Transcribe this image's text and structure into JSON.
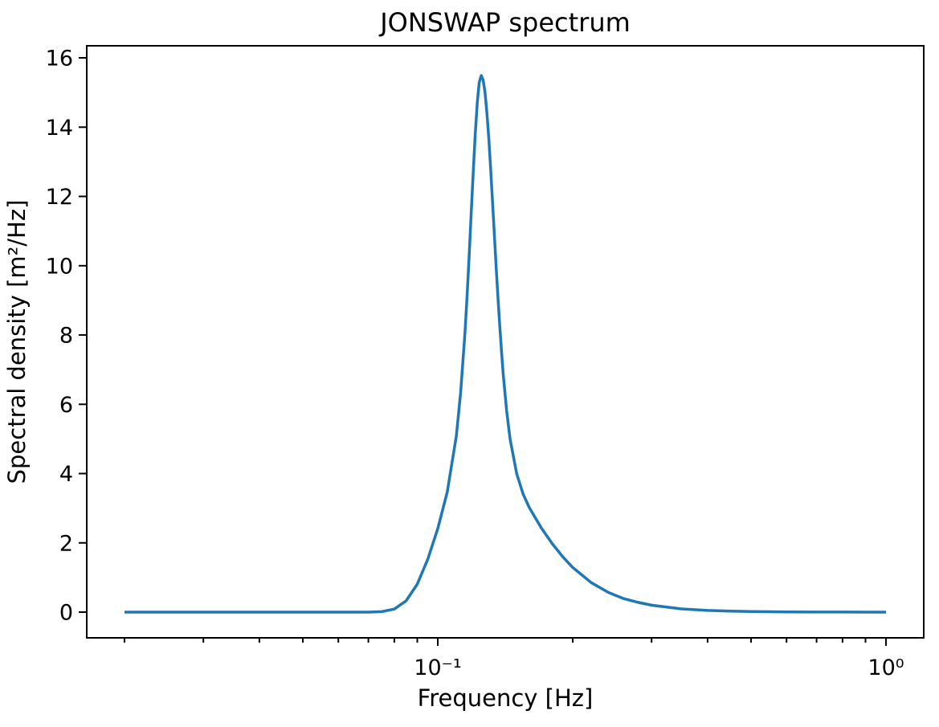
{
  "figure": {
    "background": "#ffffff",
    "text_color": "#000000",
    "spine_color": "#000000"
  },
  "chart_data": {
    "type": "line",
    "title": "JONSWAP spectrum",
    "xlabel": "Frequency [Hz]",
    "ylabel": "Spectral density [m²/Hz]",
    "x_scale": "log",
    "y_scale": "linear",
    "xlim": [
      0.0163,
      1.216
    ],
    "ylim": [
      -0.74,
      16.35
    ],
    "grid": false,
    "legend": null,
    "line_color": "#1f77b4",
    "x_ticks": [
      {
        "value": 0.1,
        "label": "10⁻¹"
      },
      {
        "value": 1.0,
        "label": "10⁰"
      }
    ],
    "x_minor_ticks": [
      0.02,
      0.03,
      0.04,
      0.05,
      0.06,
      0.07,
      0.08,
      0.09,
      0.2,
      0.3,
      0.4,
      0.5,
      0.6,
      0.7,
      0.8,
      0.9
    ],
    "y_ticks": [
      {
        "value": 0,
        "label": "0"
      },
      {
        "value": 2,
        "label": "2"
      },
      {
        "value": 4,
        "label": "4"
      },
      {
        "value": 6,
        "label": "6"
      },
      {
        "value": 8,
        "label": "8"
      },
      {
        "value": 10,
        "label": "10"
      },
      {
        "value": 12,
        "label": "12"
      },
      {
        "value": 14,
        "label": "14"
      },
      {
        "value": 16,
        "label": "16"
      }
    ],
    "peak": {
      "frequency_hz": 0.125,
      "spectral_density": 15.5
    },
    "series": [
      {
        "name": "spectral density",
        "color": "#1f77b4",
        "points": [
          [
            0.02,
            0.0
          ],
          [
            0.03,
            0.0
          ],
          [
            0.04,
            0.0
          ],
          [
            0.05,
            0.0
          ],
          [
            0.06,
            0.0
          ],
          [
            0.07,
            0.001
          ],
          [
            0.075,
            0.014
          ],
          [
            0.08,
            0.089
          ],
          [
            0.085,
            0.326
          ],
          [
            0.09,
            0.81
          ],
          [
            0.095,
            1.53
          ],
          [
            0.1,
            2.41
          ],
          [
            0.105,
            3.47
          ],
          [
            0.11,
            5.08
          ],
          [
            0.1125,
            6.35
          ],
          [
            0.115,
            8.08
          ],
          [
            0.11625,
            9.13
          ],
          [
            0.1175,
            10.3
          ],
          [
            0.11875,
            11.51
          ],
          [
            0.12,
            12.72
          ],
          [
            0.12125,
            13.82
          ],
          [
            0.1225,
            14.71
          ],
          [
            0.12375,
            15.29
          ],
          [
            0.125,
            15.49
          ],
          [
            0.12625,
            15.36
          ],
          [
            0.1275,
            14.99
          ],
          [
            0.12875,
            14.4
          ],
          [
            0.13,
            13.65
          ],
          [
            0.13125,
            12.77
          ],
          [
            0.1325,
            11.83
          ],
          [
            0.13375,
            10.88
          ],
          [
            0.135,
            9.95
          ],
          [
            0.13625,
            9.06
          ],
          [
            0.1375,
            8.25
          ],
          [
            0.13875,
            7.52
          ],
          [
            0.14,
            6.86
          ],
          [
            0.1425,
            5.8
          ],
          [
            0.145,
            5.0
          ],
          [
            0.15,
            3.99
          ],
          [
            0.155,
            3.41
          ],
          [
            0.16,
            3.02
          ],
          [
            0.17,
            2.44
          ],
          [
            0.18,
            1.98
          ],
          [
            0.19,
            1.6
          ],
          [
            0.2,
            1.29
          ],
          [
            0.22,
            0.85
          ],
          [
            0.24,
            0.57
          ],
          [
            0.26,
            0.39
          ],
          [
            0.28,
            0.28
          ],
          [
            0.3,
            0.2
          ],
          [
            0.35,
            0.093
          ],
          [
            0.4,
            0.048
          ],
          [
            0.45,
            0.027
          ],
          [
            0.5,
            0.016
          ],
          [
            0.6,
            0.006
          ],
          [
            0.7,
            0.003
          ],
          [
            0.8,
            0.002
          ],
          [
            0.9,
            0.001
          ],
          [
            1.0,
            0.001
          ]
        ]
      }
    ]
  }
}
